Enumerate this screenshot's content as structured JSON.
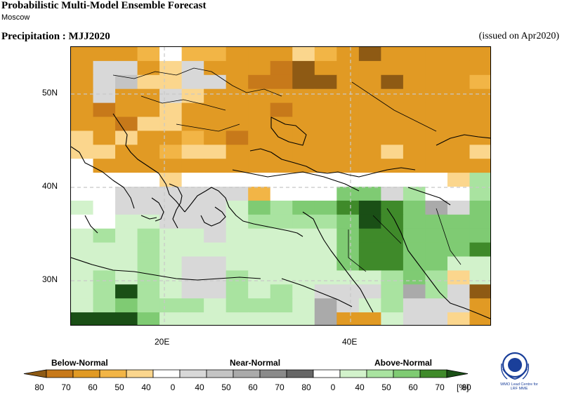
{
  "header": {
    "title": "Probabilistic Multi-Model Ensemble Forecast",
    "subtitle": "Moscow",
    "variable": "Precipitation : MJJ2020",
    "issued": "(issued on Apr2020)"
  },
  "map": {
    "lat_labels": [
      "50N",
      "40N",
      "30N"
    ],
    "lon_labels": [
      "20E",
      "40E"
    ],
    "colors": {
      "0": "#ffffff",
      "B40": "#fbd68d",
      "B50": "#f2b546",
      "B60": "#e19a24",
      "B70": "#c7791a",
      "B80": "#8e5a14",
      "N40": "#d8d8d8",
      "N50": "#c4c4c4",
      "N60": "#aaaaaa",
      "N70": "#8a8a8a",
      "N80": "#666666",
      "A40": "#d2f2cb",
      "A50": "#a9e3a0",
      "A60": "#7fcb73",
      "A70": "#3f8a2a",
      "A80": "#1a4f16"
    }
  },
  "legend": {
    "categories": [
      "Below-Normal",
      "Near-Normal",
      "Above-Normal"
    ],
    "ticks": [
      "80",
      "70",
      "60",
      "50",
      "40",
      "0",
      "40",
      "50",
      "60",
      "70",
      "80",
      "0",
      "40",
      "50",
      "60",
      "70",
      "80"
    ],
    "unit": "[%]",
    "colors": [
      "#8e5a14",
      "#c7791a",
      "#e19a24",
      "#f2b546",
      "#fbd68d",
      "#ffffff",
      "#d8d8d8",
      "#c4c4c4",
      "#aaaaaa",
      "#8a8a8a",
      "#666666",
      "#ffffff",
      "#d2f2cb",
      "#a9e3a0",
      "#7fcb73",
      "#3f8a2a",
      "#1a4f16"
    ]
  },
  "logo": {
    "org": "WMO Lead Centre for",
    "org2": "LRF MME"
  }
}
